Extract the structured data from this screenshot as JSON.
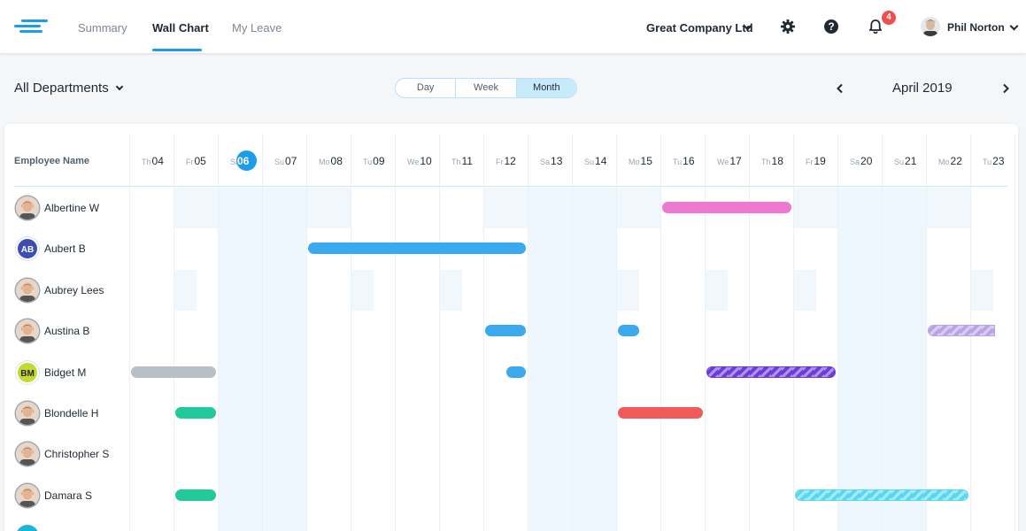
{
  "nav": {
    "tabs": [
      {
        "label": "Summary"
      },
      {
        "label": "Wall Chart"
      },
      {
        "label": "My Leave"
      }
    ],
    "company": "Great Company Ltd",
    "notifications_count": "4",
    "user_name": "Phil Norton",
    "icons": [
      "logo-icon",
      "gear-icon",
      "help-icon",
      "bell-icon"
    ]
  },
  "toolbar": {
    "department": "All Departments",
    "views": [
      {
        "label": "Day"
      },
      {
        "label": "Week"
      },
      {
        "label": "Month"
      }
    ],
    "selected_view": "Month",
    "month": "April 2019"
  },
  "table": {
    "employee_header": "Employee Name",
    "today": "06",
    "days": [
      {
        "dn": "Th",
        "num": "04"
      },
      {
        "dn": "Fr",
        "num": "05"
      },
      {
        "dn": "Sa",
        "num": "06"
      },
      {
        "dn": "Su",
        "num": "07"
      },
      {
        "dn": "Mo",
        "num": "08"
      },
      {
        "dn": "Tu",
        "num": "09"
      },
      {
        "dn": "We",
        "num": "10"
      },
      {
        "dn": "Th",
        "num": "11"
      },
      {
        "dn": "Fr",
        "num": "12"
      },
      {
        "dn": "Sa",
        "num": "13"
      },
      {
        "dn": "Su",
        "num": "14"
      },
      {
        "dn": "Mo",
        "num": "15"
      },
      {
        "dn": "Tu",
        "num": "16"
      },
      {
        "dn": "We",
        "num": "17"
      },
      {
        "dn": "Th",
        "num": "18"
      },
      {
        "dn": "Fr",
        "num": "19"
      },
      {
        "dn": "Sa",
        "num": "20"
      },
      {
        "dn": "Su",
        "num": "21"
      },
      {
        "dn": "Mo",
        "num": "22"
      },
      {
        "dn": "Tu",
        "num": "23"
      }
    ],
    "employees": [
      {
        "name": "Albertine W",
        "avatar": "photo",
        "photo_color": "#c0392b"
      },
      {
        "name": "Aubert B",
        "avatar": "initials",
        "initials": "AB",
        "color": "#3e4db5"
      },
      {
        "name": "Aubrey Lees",
        "avatar": "photo",
        "photo_color": "#a0522d"
      },
      {
        "name": "Austina B",
        "avatar": "photo",
        "photo_color": "#8b4513"
      },
      {
        "name": "Bidget M",
        "avatar": "initials",
        "initials": "BM",
        "color": "#c6d92e"
      },
      {
        "name": "Blondelle H",
        "avatar": "photo",
        "photo_color": "#6b3f2a"
      },
      {
        "name": "Christopher S",
        "avatar": "photo",
        "photo_color": "#4a6fa5"
      },
      {
        "name": "Damara S",
        "avatar": "photo",
        "photo_color": "#7a5c48"
      }
    ],
    "leaves": [
      {
        "employee": 0,
        "start": "16",
        "end": "18",
        "color": "#ee7ad0",
        "striped": false
      },
      {
        "employee": 1,
        "start": "08",
        "end": "12",
        "color": "#3aa9ee",
        "striped": false
      },
      {
        "employee": 3,
        "start": "12",
        "end": "12",
        "color": "#3aa9ee",
        "striped": false
      },
      {
        "employee": 3,
        "start": "15",
        "end": "15",
        "color": "#3aa9ee",
        "striped": false,
        "half": true
      },
      {
        "employee": 3,
        "start": "22",
        "end": "23",
        "color": "#b9a4e8",
        "striped": true,
        "open_end": true
      },
      {
        "employee": 4,
        "start": "04",
        "end": "05",
        "color": "#b9bfc7",
        "striped": false
      },
      {
        "employee": 4,
        "start": "12",
        "end": "12",
        "color": "#3aa9ee",
        "striped": false,
        "half_pm": true
      },
      {
        "employee": 4,
        "start": "17",
        "end": "19",
        "color": "#6d3cd6",
        "striped": true
      },
      {
        "employee": 5,
        "start": "05",
        "end": "05",
        "color": "#22c99a",
        "striped": false
      },
      {
        "employee": 5,
        "start": "15",
        "end": "16",
        "color": "#ef5a5a",
        "striped": false
      },
      {
        "employee": 7,
        "start": "05",
        "end": "05",
        "color": "#22c99a",
        "striped": false
      },
      {
        "employee": 7,
        "start": "19",
        "end": "22",
        "color": "#5ad8f2",
        "striped": true
      }
    ],
    "weekend_color": "#edf7fd",
    "row_shade_color": "#f1f8fd"
  }
}
